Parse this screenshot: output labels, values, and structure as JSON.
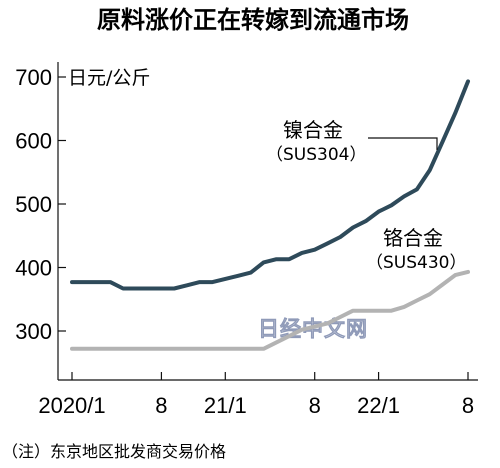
{
  "chart_data": {
    "type": "line",
    "title": "原料涨价正在转嫁到流通市场",
    "ylabel": "日元/公斤",
    "ylim": [
      260,
      720
    ],
    "y_ticks": [
      300,
      400,
      500,
      600,
      700
    ],
    "x_ticks": [
      {
        "label": "2020/1",
        "index": 0
      },
      {
        "label": "8",
        "index": 7
      },
      {
        "label": "21/1",
        "index": 12
      },
      {
        "label": "8",
        "index": 19
      },
      {
        "label": "22/1",
        "index": 24
      },
      {
        "label": "8",
        "index": 31
      }
    ],
    "grid": false,
    "series": [
      {
        "name": "镍合金",
        "code": "（SUS304）",
        "color": "#2e4a5a",
        "values": [
          377,
          377,
          377,
          377,
          367,
          367,
          367,
          367,
          367,
          372,
          377,
          377,
          382,
          387,
          392,
          408,
          413,
          413,
          423,
          428,
          438,
          448,
          463,
          473,
          488,
          498,
          512,
          523,
          553,
          598,
          643,
          693
        ]
      },
      {
        "name": "铬合金",
        "code": "（SUS430）",
        "color": "#b3b3b3",
        "values": [
          272,
          272,
          272,
          272,
          272,
          272,
          272,
          272,
          272,
          272,
          272,
          272,
          272,
          272,
          272,
          272,
          282,
          292,
          302,
          307,
          312,
          322,
          332,
          332,
          332,
          332,
          338,
          348,
          358,
          373,
          388,
          393
        ]
      }
    ],
    "annotations": {
      "note": "（注）东京地区批发商交易价格",
      "watermark": "日经中文网"
    }
  }
}
